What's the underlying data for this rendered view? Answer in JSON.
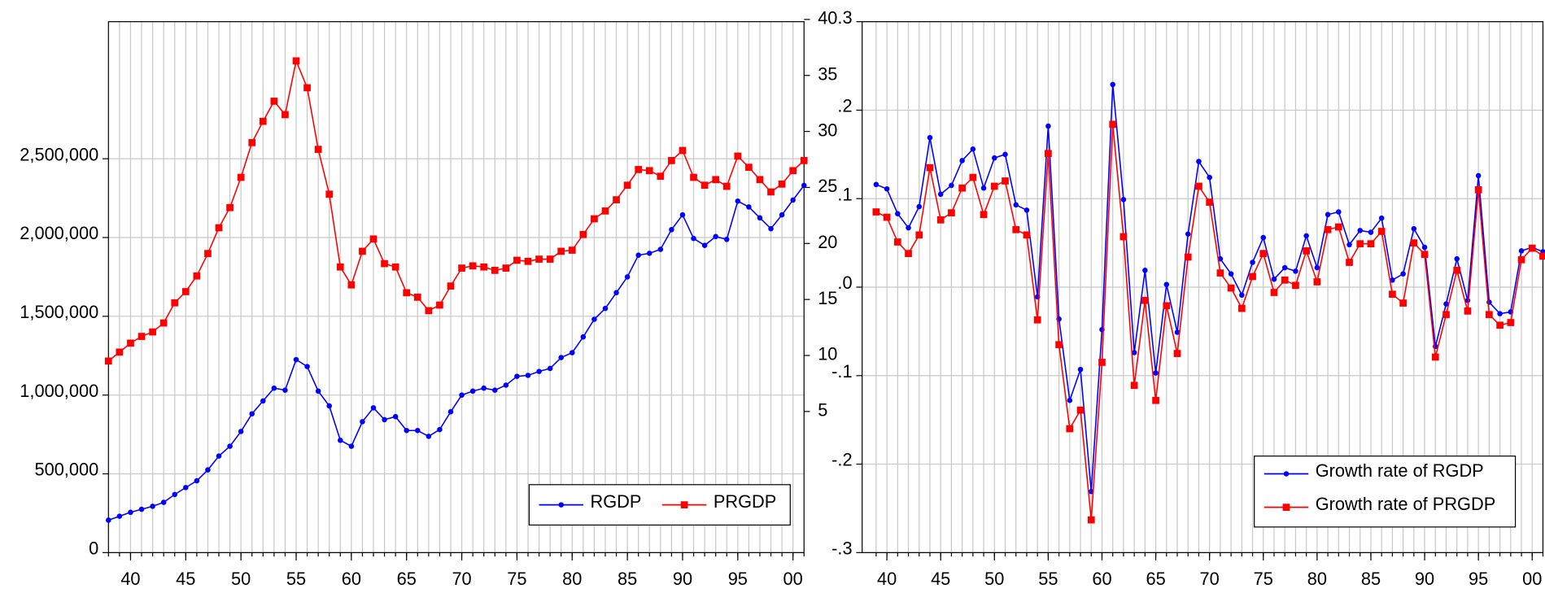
{
  "chart_data": [
    {
      "type": "line",
      "x": [
        1938,
        1939,
        1940,
        1941,
        1942,
        1943,
        1944,
        1945,
        1946,
        1947,
        1948,
        1949,
        1950,
        1951,
        1952,
        1953,
        1954,
        1955,
        1956,
        1957,
        1958,
        1959,
        1960,
        1961,
        1962,
        1963,
        1964,
        1965,
        1966,
        1967,
        1968,
        1969,
        1970,
        1971,
        1972,
        1973,
        1974,
        1975,
        1976,
        1977,
        1978,
        1979,
        1980,
        1981,
        1982,
        1983,
        1984,
        1985,
        1986,
        1987,
        1988,
        1989,
        1990,
        1991,
        1992,
        1993,
        1994,
        1995,
        1996,
        1997,
        1998,
        1999,
        2000,
        2001
      ],
      "series": [
        {
          "name": "RGDP",
          "color": "#0000ff",
          "marker": "circle",
          "values": [
            206000,
            231000,
            256000,
            275000,
            294000,
            319000,
            369000,
            413000,
            456000,
            525000,
            613000,
            675000,
            769000,
            881000,
            963000,
            1044000,
            1031000,
            1225000,
            1181000,
            1025000,
            931000,
            713000,
            675000,
            831000,
            919000,
            844000,
            863000,
            775000,
            775000,
            738000,
            781000,
            894000,
            1000000,
            1025000,
            1044000,
            1031000,
            1063000,
            1119000,
            1125000,
            1150000,
            1169000,
            1238000,
            1269000,
            1369000,
            1481000,
            1550000,
            1650000,
            1750000,
            1888000,
            1900000,
            1925000,
            2050000,
            2144000,
            1994000,
            1950000,
            2006000,
            1988000,
            2231000,
            2194000,
            2125000,
            2056000,
            2144000,
            2238000,
            2331000
          ]
        },
        {
          "name": "PRGDP",
          "color": "#ff0000",
          "marker": "square",
          "axis": "y2",
          "values": [
            9.5,
            10.3,
            11.1,
            11.7,
            12.1,
            12.9,
            14.7,
            15.7,
            17.1,
            19.1,
            21.4,
            23.2,
            25.9,
            29.0,
            30.9,
            32.7,
            31.5,
            36.3,
            33.9,
            28.4,
            24.4,
            17.9,
            16.3,
            19.3,
            20.4,
            18.2,
            17.9,
            15.6,
            15.2,
            14.0,
            14.5,
            16.2,
            17.8,
            18.0,
            17.9,
            17.6,
            17.8,
            18.5,
            18.4,
            18.6,
            18.6,
            19.3,
            19.4,
            20.8,
            22.2,
            22.9,
            23.9,
            25.2,
            26.6,
            26.5,
            26.0,
            27.4,
            28.3,
            25.9,
            25.2,
            25.7,
            25.1,
            27.8,
            26.8,
            25.7,
            24.6,
            25.3,
            26.5,
            27.4
          ]
        }
      ],
      "xlim": [
        1938,
        2001
      ],
      "xticks": [
        {
          "value": 1940,
          "label": "40"
        },
        {
          "value": 1945,
          "label": "45"
        },
        {
          "value": 1950,
          "label": "50"
        },
        {
          "value": 1955,
          "label": "55"
        },
        {
          "value": 1960,
          "label": "60"
        },
        {
          "value": 1965,
          "label": "65"
        },
        {
          "value": 1970,
          "label": "70"
        },
        {
          "value": 1975,
          "label": "75"
        },
        {
          "value": 1980,
          "label": "80"
        },
        {
          "value": 1985,
          "label": "85"
        },
        {
          "value": 1990,
          "label": "90"
        },
        {
          "value": 1995,
          "label": "95"
        },
        {
          "value": 2000,
          "label": "00"
        }
      ],
      "ylim": [
        0,
        3370000
      ],
      "yticks": [
        0,
        {
          "value": 500000,
          "label": "500,000"
        },
        {
          "value": 1000000,
          "label": "1,000,000"
        },
        {
          "value": 1500000,
          "label": "1,500,000"
        },
        {
          "value": 2000000,
          "label": "2,000,000"
        },
        {
          "value": 2500000,
          "label": "2,500,000"
        }
      ],
      "y2lim": [
        -7.6,
        39.8
      ],
      "y2ticks": [
        5,
        10,
        15,
        20,
        25,
        30,
        35,
        40
      ],
      "grid": true,
      "legend": "lower right"
    },
    {
      "type": "line",
      "x": [
        1939,
        1940,
        1941,
        1942,
        1943,
        1944,
        1945,
        1946,
        1947,
        1948,
        1949,
        1950,
        1951,
        1952,
        1953,
        1954,
        1955,
        1956,
        1957,
        1958,
        1959,
        1960,
        1961,
        1962,
        1963,
        1964,
        1965,
        1966,
        1967,
        1968,
        1969,
        1970,
        1971,
        1972,
        1973,
        1974,
        1975,
        1976,
        1977,
        1978,
        1979,
        1980,
        1981,
        1982,
        1983,
        1984,
        1985,
        1986,
        1987,
        1988,
        1989,
        1990,
        1991,
        1992,
        1993,
        1994,
        1995,
        1996,
        1997,
        1998,
        1999,
        2000,
        2001
      ],
      "series": [
        {
          "name": "Growth rate of RGDP",
          "color": "#0000ff",
          "marker": "circle",
          "values": [
            0.116,
            0.111,
            0.083,
            0.067,
            0.091,
            0.169,
            0.105,
            0.115,
            0.143,
            0.156,
            0.112,
            0.146,
            0.15,
            0.093,
            0.087,
            -0.011,
            0.182,
            -0.036,
            -0.128,
            -0.093,
            -0.231,
            -0.048,
            0.229,
            0.099,
            -0.074,
            0.019,
            -0.097,
            0.003,
            -0.051,
            0.06,
            0.142,
            0.124,
            0.032,
            0.015,
            -0.009,
            0.028,
            0.056,
            0.009,
            0.022,
            0.018,
            0.058,
            0.022,
            0.082,
            0.085,
            0.048,
            0.064,
            0.062,
            0.078,
            0.008,
            0.015,
            0.066,
            0.045,
            -0.067,
            -0.019,
            0.032,
            -0.015,
            0.126,
            -0.017,
            -0.03,
            -0.028,
            0.041,
            0.045,
            0.04
          ]
        },
        {
          "name": "Growth rate of PRGDP",
          "color": "#ff0000",
          "marker": "square",
          "values": [
            0.085,
            0.079,
            0.051,
            0.038,
            0.059,
            0.135,
            0.076,
            0.084,
            0.112,
            0.124,
            0.082,
            0.114,
            0.12,
            0.065,
            0.059,
            -0.037,
            0.151,
            -0.065,
            -0.16,
            -0.139,
            -0.263,
            -0.085,
            0.184,
            0.057,
            -0.111,
            -0.015,
            -0.128,
            -0.021,
            -0.075,
            0.034,
            0.114,
            0.096,
            0.016,
            -0.001,
            -0.024,
            0.012,
            0.038,
            -0.006,
            0.008,
            0.002,
            0.041,
            0.006,
            0.065,
            0.068,
            0.028,
            0.049,
            0.049,
            0.063,
            -0.008,
            -0.018,
            0.05,
            0.037,
            -0.079,
            -0.031,
            0.019,
            -0.027,
            0.11,
            -0.031,
            -0.043,
            -0.04,
            0.031,
            0.044,
            0.035
          ]
        }
      ],
      "xlim": [
        1937.7,
        2001
      ],
      "xticks": [
        {
          "value": 1940,
          "label": "40"
        },
        {
          "value": 1945,
          "label": "45"
        },
        {
          "value": 1950,
          "label": "50"
        },
        {
          "value": 1955,
          "label": "55"
        },
        {
          "value": 1960,
          "label": "60"
        },
        {
          "value": 1965,
          "label": "65"
        },
        {
          "value": 1970,
          "label": "70"
        },
        {
          "value": 1975,
          "label": "75"
        },
        {
          "value": 1980,
          "label": "80"
        },
        {
          "value": 1985,
          "label": "85"
        },
        {
          "value": 1990,
          "label": "90"
        },
        {
          "value": 1995,
          "label": "95"
        },
        {
          "value": 2000,
          "label": "00"
        }
      ],
      "ylim": [
        -0.3,
        0.3
      ],
      "yticks": [
        {
          "value": -0.3,
          "label": "-.3"
        },
        {
          "value": -0.2,
          "label": "-.2"
        },
        {
          "value": -0.1,
          "label": "-.1"
        },
        {
          "value": 0,
          "label": ".0"
        },
        {
          "value": 0.1,
          "label": ".1"
        },
        {
          "value": 0.2,
          "label": ".2"
        },
        {
          "value": 0.3,
          "label": ".3"
        }
      ],
      "grid": true,
      "legend": "lower right"
    }
  ]
}
